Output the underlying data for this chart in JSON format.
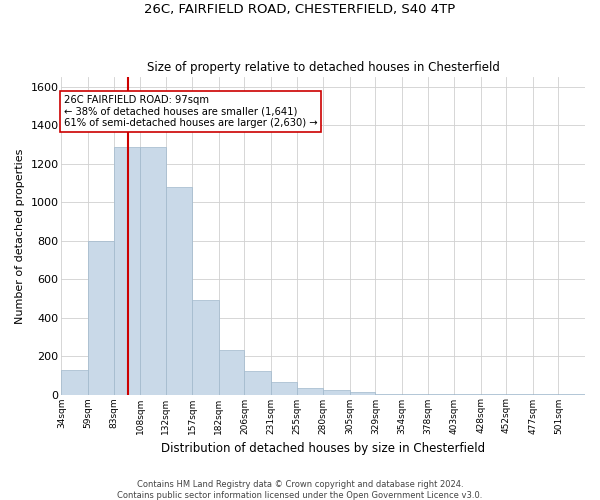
{
  "title1": "26C, FAIRFIELD ROAD, CHESTERFIELD, S40 4TP",
  "title2": "Size of property relative to detached houses in Chesterfield",
  "xlabel": "Distribution of detached houses by size in Chesterfield",
  "ylabel": "Number of detached properties",
  "footnote1": "Contains HM Land Registry data © Crown copyright and database right 2024.",
  "footnote2": "Contains public sector information licensed under the Open Government Licence v3.0.",
  "bar_edges": [
    34,
    59,
    83,
    108,
    132,
    157,
    182,
    206,
    231,
    255,
    280,
    305,
    329,
    354,
    378,
    403,
    428,
    452,
    477,
    501,
    526
  ],
  "bar_heights": [
    130,
    800,
    1290,
    1290,
    1080,
    490,
    230,
    120,
    65,
    35,
    25,
    15,
    5,
    5,
    5,
    5,
    5,
    5,
    5,
    5
  ],
  "bar_color": "#c9d9e8",
  "bar_edge_color": "#a0b8cc",
  "vline_x": 97,
  "vline_color": "#cc0000",
  "ylim": [
    0,
    1650
  ],
  "yticks": [
    0,
    200,
    400,
    600,
    800,
    1000,
    1200,
    1400,
    1600
  ],
  "annotation_title": "26C FAIRFIELD ROAD: 97sqm",
  "annotation_line1": "← 38% of detached houses are smaller (1,641)",
  "annotation_line2": "61% of semi-detached houses are larger (2,630) →",
  "annotation_box_color": "#ffffff",
  "annotation_box_edge": "#cc0000",
  "grid_color": "#d0d0d0",
  "background_color": "#ffffff",
  "fig_width": 6.0,
  "fig_height": 5.0
}
